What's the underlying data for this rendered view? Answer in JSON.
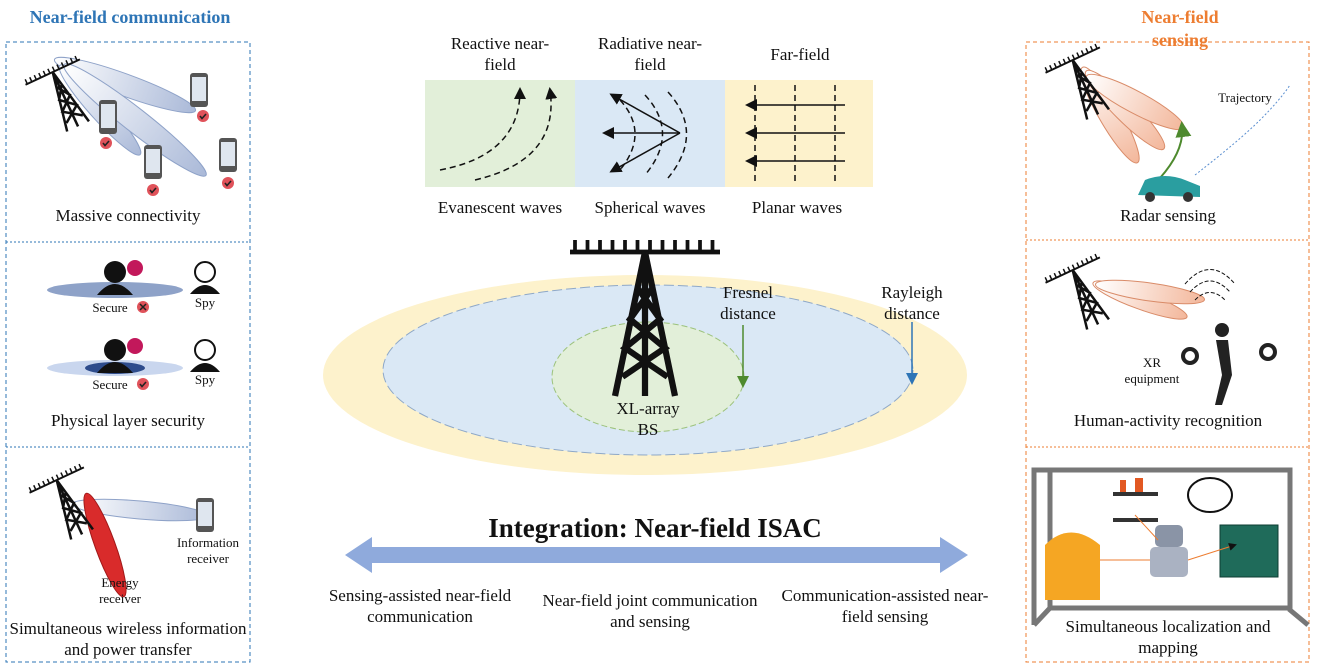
{
  "left": {
    "heading": "Near-field communication",
    "panels": [
      {
        "title": "Massive connectivity"
      },
      {
        "title": "Physical layer security",
        "labels": [
          "Secure",
          "Spy",
          "Secure",
          "Spy"
        ]
      },
      {
        "title": "Simultaneous wireless information and power transfer",
        "labels": [
          "Information receiver",
          "Energy receiver"
        ]
      }
    ]
  },
  "right": {
    "heading": "Near-field sensing",
    "panels": [
      {
        "title": "Radar sensing",
        "labels": [
          "Trajectory"
        ]
      },
      {
        "title": "Human-activity recognition",
        "labels": [
          "XR equipment"
        ]
      },
      {
        "title": "Simultaneous localization and mapping"
      }
    ]
  },
  "center": {
    "regions": [
      {
        "name": "Reactive near-field",
        "waves": "Evanescent waves"
      },
      {
        "name": "Radiative near-field",
        "waves": "Spherical waves"
      },
      {
        "name": "Far-field",
        "waves": "Planar waves"
      }
    ],
    "fresnel": "Fresnel distance",
    "rayleigh": "Rayleigh distance",
    "bs": "XL-array BS",
    "integration": "Integration: Near-field ISAC",
    "modes": [
      "Sensing-assisted near-field communication",
      "Near-field joint communication and sensing",
      "Communication-assisted near-field sensing"
    ]
  }
}
